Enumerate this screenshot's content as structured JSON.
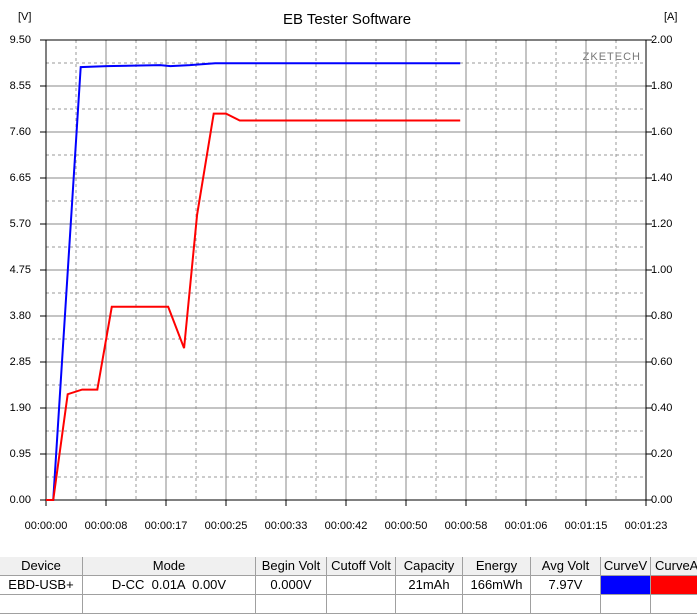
{
  "chart_data": {
    "type": "line",
    "title": "EB Tester Software",
    "y_label": "[V]",
    "y2_label": "[A]",
    "watermark": "ZKETECH",
    "xlim": [
      0,
      83
    ],
    "ylim": [
      0,
      9.5
    ],
    "y2lim": [
      0,
      2
    ],
    "xticks": [
      {
        "value": 0,
        "label": "00:00:00"
      },
      {
        "value": 8.3,
        "label": "00:00:08"
      },
      {
        "value": 16.6,
        "label": "00:00:17"
      },
      {
        "value": 24.9,
        "label": "00:00:25"
      },
      {
        "value": 33.2,
        "label": "00:00:33"
      },
      {
        "value": 41.5,
        "label": "00:00:42"
      },
      {
        "value": 49.8,
        "label": "00:00:50"
      },
      {
        "value": 58.1,
        "label": "00:00:58"
      },
      {
        "value": 66.4,
        "label": "00:01:06"
      },
      {
        "value": 74.7,
        "label": "00:01:15"
      },
      {
        "value": 83,
        "label": "00:01:23"
      }
    ],
    "yticks": [
      {
        "value": 0,
        "label": "0.00"
      },
      {
        "value": 0.95,
        "label": "0.95"
      },
      {
        "value": 1.9,
        "label": "1.90"
      },
      {
        "value": 2.85,
        "label": "2.85"
      },
      {
        "value": 3.8,
        "label": "3.80"
      },
      {
        "value": 4.75,
        "label": "4.75"
      },
      {
        "value": 5.7,
        "label": "5.70"
      },
      {
        "value": 6.65,
        "label": "6.65"
      },
      {
        "value": 7.6,
        "label": "7.60"
      },
      {
        "value": 8.55,
        "label": "8.55"
      },
      {
        "value": 9.5,
        "label": "9.50"
      }
    ],
    "y2ticks": [
      {
        "value": 0,
        "label": "0.00"
      },
      {
        "value": 0.2,
        "label": "0.20"
      },
      {
        "value": 0.4,
        "label": "0.40"
      },
      {
        "value": 0.6,
        "label": "0.60"
      },
      {
        "value": 0.8,
        "label": "0.80"
      },
      {
        "value": 1,
        "label": "1.00"
      },
      {
        "value": 1.2,
        "label": "1.20"
      },
      {
        "value": 1.4,
        "label": "1.40"
      },
      {
        "value": 1.6,
        "label": "1.60"
      },
      {
        "value": 1.8,
        "label": "1.80"
      },
      {
        "value": 2,
        "label": "2.00"
      }
    ],
    "grid": true,
    "series": [
      {
        "color": "#0000ff",
        "x": [
          0,
          1.0,
          4.8,
          8.4,
          15.8,
          17.2,
          19.9,
          23.4,
          57.3
        ],
        "values": [
          0,
          0,
          8.94,
          8.96,
          8.98,
          8.96,
          8.98,
          9.02,
          9.02
        ]
      },
      {
        "color": "#ff0000",
        "axis": "y2",
        "x": [
          0,
          1.0,
          3.0,
          5.0,
          7.1,
          9.1,
          16.9,
          19.1,
          20.9,
          23.2,
          24.9,
          26.8,
          57.3
        ],
        "values": [
          0,
          0,
          0.46,
          0.48,
          0.48,
          0.84,
          0.84,
          0.66,
          1.24,
          1.68,
          1.68,
          1.65,
          1.65
        ]
      }
    ]
  },
  "table": {
    "headers": [
      "Device",
      "Mode",
      "Begin Volt",
      "Cutoff Volt",
      "Capacity",
      "Energy",
      "Avg Volt",
      "CurveV",
      "CurveA"
    ],
    "row": {
      "device": "EBD-USB+",
      "mode": "D-CC  0.01A  0.00V",
      "begin_volt": "0.000V",
      "capacity": "21mAh",
      "energy": "166mWh",
      "avg_volt": "7.97V"
    }
  }
}
